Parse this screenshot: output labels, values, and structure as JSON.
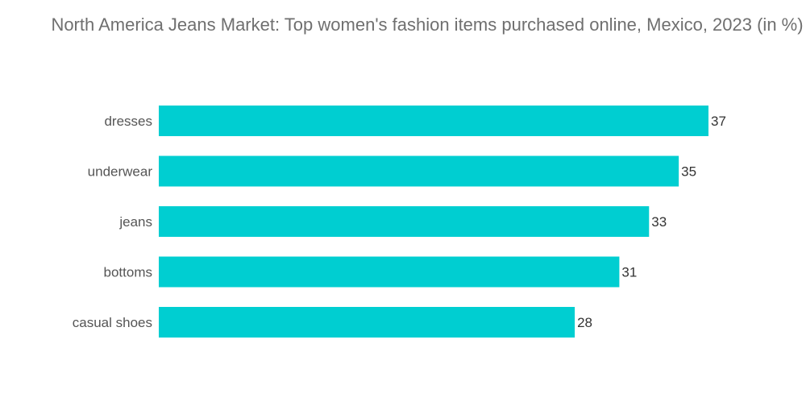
{
  "chart_data": {
    "type": "bar",
    "orientation": "horizontal",
    "title": "North America Jeans Market: Top women's fashion items purchased online, Mexico, 2023 (in %)",
    "categories": [
      "dresses",
      "underwear",
      "jeans",
      "bottoms",
      "casual shoes"
    ],
    "values": [
      37,
      35,
      33,
      31,
      28
    ],
    "xlabel": "",
    "ylabel": "",
    "xlim": [
      0,
      37
    ],
    "grid": false,
    "legend": "none",
    "bar_color": "#00CED1",
    "data_labels": [
      "37",
      "35",
      "33",
      "31",
      "28"
    ]
  }
}
